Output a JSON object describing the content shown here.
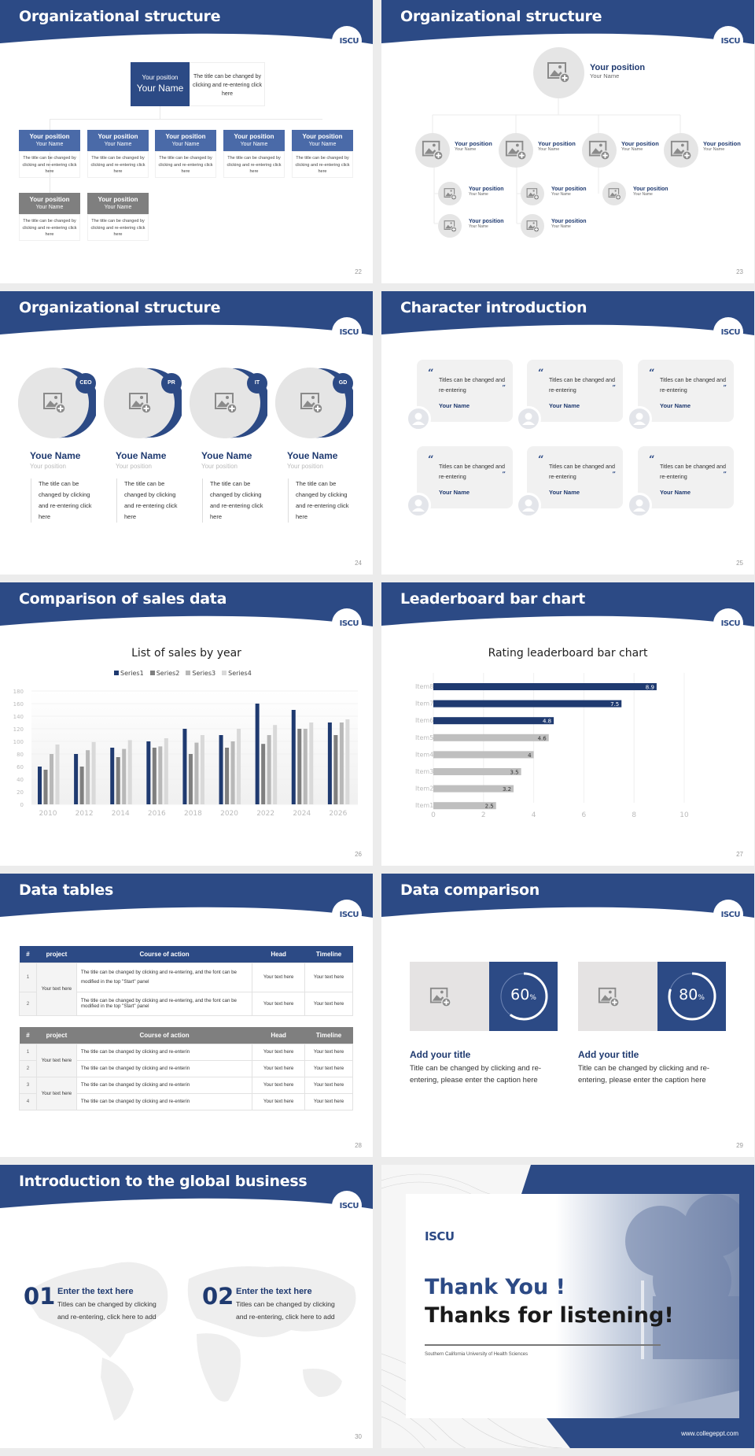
{
  "brand": {
    "primary_color": "#2c4a85",
    "dark_navy": "#1f3a70",
    "gray_card": "#7f7f7f",
    "logo_text": "ISCU"
  },
  "slides": [
    {
      "page": "22",
      "title": "Organizational structure",
      "top": {
        "position": "Your position",
        "name": "Your Name",
        "desc": "The title can be changed by clicking and re-entering click here"
      },
      "cards": [
        {
          "position": "Your position",
          "name": "Your Name",
          "desc": "The title can be changed by clicking and re-entering click here",
          "style": "blue"
        },
        {
          "position": "Your position",
          "name": "Your Name",
          "desc": "The title can be changed by clicking and re-entering click here",
          "style": "blue"
        },
        {
          "position": "Your position",
          "name": "Your Name",
          "desc": "The title can be changed by clicking and re-entering click here",
          "style": "blue"
        },
        {
          "position": "Your position",
          "name": "Your Name",
          "desc": "The title can be changed by clicking and re-entering click here",
          "style": "blue"
        },
        {
          "position": "Your position",
          "name": "Your Name",
          "desc": "The title can be changed by clicking and re-entering click here",
          "style": "blue"
        },
        {
          "position": "Your position",
          "name": "Your Name",
          "desc": "The title can be changed by clicking and re-entering click here",
          "style": "gray"
        },
        {
          "position": "Your position",
          "name": "Your Name",
          "desc": "The title can be changed by clicking and re-entering click here",
          "style": "gray"
        }
      ]
    },
    {
      "page": "23",
      "title": "Organizational structure",
      "top": {
        "position": "Your position",
        "name": "Your Name"
      },
      "level2": [
        {
          "position": "Your position",
          "name": "Your Name"
        },
        {
          "position": "Your position",
          "name": "Your Name"
        },
        {
          "position": "Your position",
          "name": "Your Name"
        },
        {
          "position": "Your position",
          "name": "Your Name"
        }
      ],
      "level3": [
        {
          "position": "Your position",
          "name": "Your Name"
        },
        {
          "position": "Your position",
          "name": "Your Name"
        },
        {
          "position": "Your position",
          "name": "Your Name"
        },
        {
          "position": "Your position",
          "name": "Your Name"
        },
        {
          "position": "Your position",
          "name": "Your Name"
        }
      ]
    },
    {
      "page": "24",
      "title": "Organizational structure",
      "people": [
        {
          "badge": "CEO",
          "name": "Youe Name",
          "position": "Your position",
          "desc": "The title can be changed by clicking and re-entering click here"
        },
        {
          "badge": "PR",
          "name": "Youe Name",
          "position": "Your position",
          "desc": "The title can be changed by clicking and re-entering click here"
        },
        {
          "badge": "IT",
          "name": "Youe Name",
          "position": "Your position",
          "desc": "The title can be changed by clicking and re-entering click here"
        },
        {
          "badge": "GD",
          "name": "Youe Name",
          "position": "Your position",
          "desc": "The title can be changed by clicking and re-entering click here"
        }
      ]
    },
    {
      "page": "25",
      "title": "Character introduction",
      "cards": [
        {
          "quote": "Titles can be changed and re-entering",
          "name": "Your Name"
        },
        {
          "quote": "Titles can be changed and re-entering",
          "name": "Your Name"
        },
        {
          "quote": "Titles can be changed and re-entering",
          "name": "Your Name"
        },
        {
          "quote": "Titles can be changed and re-entering",
          "name": "Your Name"
        },
        {
          "quote": "Titles can be changed and re-entering",
          "name": "Your Name"
        },
        {
          "quote": "Titles can be changed and re-entering",
          "name": "Your Name"
        }
      ],
      "open_quote": "“",
      "close_quote": "”"
    },
    {
      "page": "26",
      "title": "Comparison of sales data"
    },
    {
      "page": "27",
      "title": "Leaderboard bar chart"
    },
    {
      "page": "28",
      "title": "Data tables",
      "table1": {
        "headers": [
          "#",
          "project",
          "Course of action",
          "Head",
          "Timeline"
        ],
        "project": "Your text here",
        "rows": [
          {
            "num": "1",
            "action": "The title can be changed by clicking and re-entering, and the font can be modified in the top \"Start\" panel",
            "head": "Your text here",
            "timeline": "Your text here"
          },
          {
            "num": "2",
            "action": "The title can be changed by clicking and re-entering, and the font can be modified in the top \"Start\" panel",
            "head": "Your text here",
            "timeline": "Your text here"
          }
        ]
      },
      "table2": {
        "headers": [
          "#",
          "project",
          "Course of action",
          "Head",
          "Timeline"
        ],
        "projects": [
          "Your text here",
          "Your text here"
        ],
        "rows": [
          {
            "num": "1",
            "action": "The title can be changed by clicking and re-enterin",
            "head": "Your text here",
            "timeline": "Your text here"
          },
          {
            "num": "2",
            "action": "The title can be changed by clicking and re-enterin",
            "head": "Your text here",
            "timeline": "Your text here"
          },
          {
            "num": "3",
            "action": "The title can be changed by clicking and re-enterin",
            "head": "Your text here",
            "timeline": "Your text here"
          },
          {
            "num": "4",
            "action": "The title can be changed by clicking and re-enterin",
            "head": "Your text here",
            "timeline": "Your text here"
          }
        ]
      }
    },
    {
      "page": "29",
      "title": "Data comparison",
      "items": [
        {
          "percent": "60",
          "unit": "%",
          "value": 60,
          "title": "Add your title",
          "text": "Title can be changed by clicking and re-entering, please enter the caption here"
        },
        {
          "percent": "80",
          "unit": "%",
          "value": 80,
          "title": "Add your title",
          "text": "Title can be changed by clicking and re-entering, please enter the caption here"
        }
      ]
    },
    {
      "page": "30",
      "title": "Introduction to the global business",
      "items": [
        {
          "num": "01",
          "title": "Enter the text here",
          "text": "Titles can be changed by clicking and re-entering, click here to add"
        },
        {
          "num": "02",
          "title": "Enter the text here",
          "text": "Titles can be changed by clicking and re-entering, click here to add"
        }
      ]
    },
    {
      "thanks": "Thank You !",
      "listening": "Thanks for listening!",
      "university": "Southern California University of Health Sciences",
      "website": "www.collegeppt.com"
    }
  ],
  "chart_data": [
    {
      "type": "bar",
      "title": "List of sales by year",
      "categories": [
        "2010",
        "2012",
        "2014",
        "2016",
        "2018",
        "2020",
        "2022",
        "2024",
        "2026"
      ],
      "series": [
        {
          "name": "Series1",
          "color": "#1f3a70",
          "values": [
            60,
            80,
            90,
            100,
            120,
            110,
            160,
            150,
            130
          ]
        },
        {
          "name": "Series2",
          "color": "#7f7f7f",
          "values": [
            55,
            60,
            75,
            90,
            80,
            90,
            96,
            120,
            110
          ]
        },
        {
          "name": "Series3",
          "color": "#b8b8b8",
          "values": [
            80,
            86,
            88,
            92,
            98,
            100,
            110,
            120,
            130
          ]
        },
        {
          "name": "Series4",
          "color": "#d9d9d9",
          "values": [
            95,
            99,
            102,
            105,
            110,
            120,
            126,
            130,
            135
          ]
        }
      ],
      "yticks": [
        "0",
        "20",
        "40",
        "60",
        "80",
        "100",
        "120",
        "140",
        "160",
        "180"
      ],
      "ylim": [
        0,
        180
      ],
      "xlabel": "",
      "ylabel": "",
      "legend_position": "top",
      "grid": true
    },
    {
      "type": "bar",
      "orientation": "horizontal",
      "title": "Rating leaderboard bar chart",
      "categories": [
        "Item8",
        "Item7",
        "Item6",
        "Item5",
        "Item4",
        "Item3",
        "Item2",
        "Item1"
      ],
      "values": [
        8.9,
        7.5,
        4.8,
        4.6,
        4,
        3.5,
        3.2,
        2.5
      ],
      "labels": [
        "8.9",
        "7.5",
        "4.8",
        "4.6",
        "4",
        "3.5",
        "3.2",
        "2.5"
      ],
      "colors": [
        "#1f3a70",
        "#1f3a70",
        "#1f3a70",
        "#bfbfbf",
        "#bfbfbf",
        "#bfbfbf",
        "#bfbfbf",
        "#bfbfbf"
      ],
      "xticks": [
        "0",
        "2",
        "4",
        "6",
        "8",
        "10"
      ],
      "xlim": [
        0,
        10
      ],
      "xlabel": "",
      "ylabel": "",
      "grid": true
    }
  ]
}
